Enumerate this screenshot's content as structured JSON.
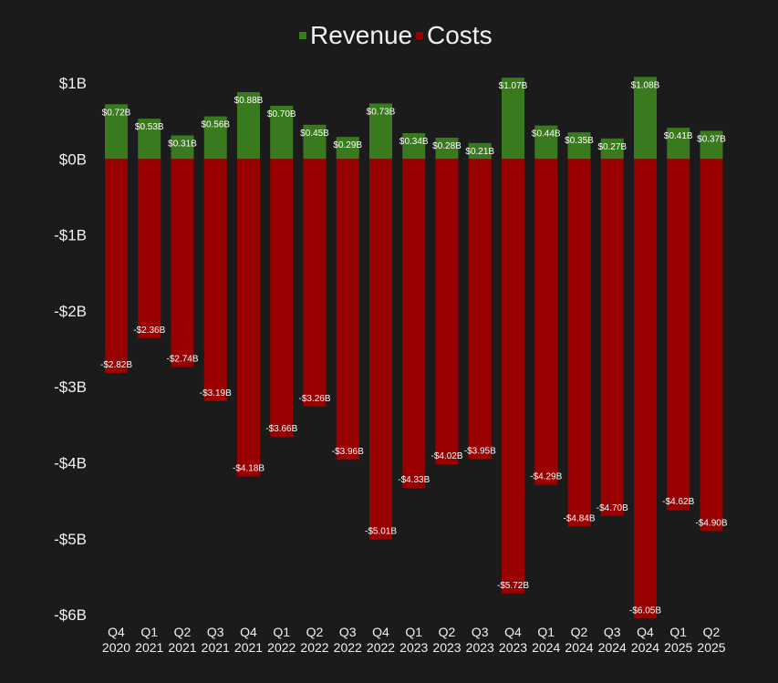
{
  "chart_data": {
    "type": "bar",
    "categories": [
      "Q4 2020",
      "Q1 2021",
      "Q2 2021",
      "Q3 2021",
      "Q4 2021",
      "Q1 2022",
      "Q2 2022",
      "Q3 2022",
      "Q4 2022",
      "Q1 2023",
      "Q2 2023",
      "Q3 2023",
      "Q4 2023",
      "Q1 2024",
      "Q2 2024",
      "Q3 2024",
      "Q4 2024",
      "Q1 2025",
      "Q2 2025"
    ],
    "x_tick_lines": [
      [
        "Q4",
        "2020"
      ],
      [
        "Q1",
        "2021"
      ],
      [
        "Q2",
        "2021"
      ],
      [
        "Q3",
        "2021"
      ],
      [
        "Q4",
        "2021"
      ],
      [
        "Q1",
        "2022"
      ],
      [
        "Q2",
        "2022"
      ],
      [
        "Q3",
        "2022"
      ],
      [
        "Q4",
        "2022"
      ],
      [
        "Q1",
        "2023"
      ],
      [
        "Q2",
        "2023"
      ],
      [
        "Q3",
        "2023"
      ],
      [
        "Q4",
        "2023"
      ],
      [
        "Q1",
        "2024"
      ],
      [
        "Q2",
        "2024"
      ],
      [
        "Q3",
        "2024"
      ],
      [
        "Q4",
        "2024"
      ],
      [
        "Q1",
        "2025"
      ],
      [
        "Q2",
        "2025"
      ]
    ],
    "series": [
      {
        "name": "Revenue",
        "color": "#3a7a1e",
        "values": [
          0.72,
          0.53,
          0.31,
          0.56,
          0.88,
          0.7,
          0.45,
          0.29,
          0.73,
          0.34,
          0.28,
          0.21,
          1.07,
          0.44,
          0.35,
          0.27,
          1.08,
          0.41,
          0.37
        ],
        "labels": [
          "$0.72B",
          "$0.53B",
          "$0.31B",
          "$0.56B",
          "$0.88B",
          "$0.70B",
          "$0.45B",
          "$0.29B",
          "$0.73B",
          "$0.34B",
          "$0.28B",
          "$0.21B",
          "$1.07B",
          "$0.44B",
          "$0.35B",
          "$0.27B",
          "$1.08B",
          "$0.41B",
          "$0.37B"
        ]
      },
      {
        "name": "Costs",
        "color": "#990000",
        "values": [
          -2.82,
          -2.36,
          -2.74,
          -3.19,
          -4.18,
          -3.66,
          -3.26,
          -3.96,
          -5.01,
          -4.33,
          -4.02,
          -3.95,
          -5.72,
          -4.29,
          -4.84,
          -4.7,
          -6.05,
          -4.62,
          -4.9
        ],
        "labels": [
          "-$2.82B",
          "-$2.36B",
          "-$2.74B",
          "-$3.19B",
          "-$4.18B",
          "-$3.66B",
          "-$3.26B",
          "-$3.96B",
          "-$5.01B",
          "-$4.33B",
          "-$4.02B",
          "-$3.95B",
          "-$5.72B",
          "-$4.29B",
          "-$4.84B",
          "-$4.70B",
          "-$6.05B",
          "-$4.62B",
          "-$4.90B"
        ]
      }
    ],
    "y_ticks": [
      1,
      0,
      -1,
      -2,
      -3,
      -4,
      -5,
      -6
    ],
    "y_tick_labels": [
      "$1B",
      "$0B",
      "-$1B",
      "-$2B",
      "-$3B",
      "-$4B",
      "-$5B",
      "-$6B"
    ],
    "ylim": [
      -6.05,
      1.08
    ],
    "stacked": true,
    "grid": false,
    "legend_position": "top-center",
    "background": "#1b1b1b",
    "text_color": "#f0f0f0"
  }
}
